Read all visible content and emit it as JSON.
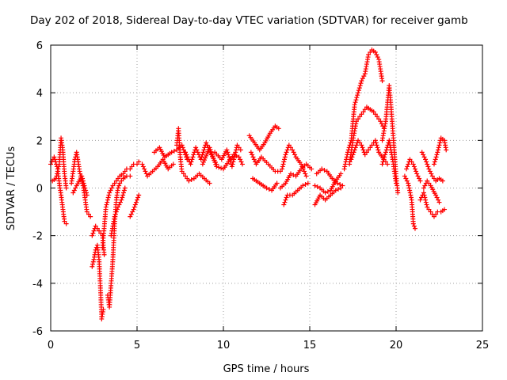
{
  "chart_data": {
    "type": "scatter",
    "title": "Day 202 of 2018, Sidereal Day-to-day VTEC variation (SDTVAR) for receiver gamb",
    "xlabel": "GPS time / hours",
    "ylabel": "SDTVAR / TECUs",
    "xlim": [
      0,
      25
    ],
    "ylim": [
      -6,
      6
    ],
    "xticks": [
      0,
      5,
      10,
      15,
      20,
      25
    ],
    "yticks": [
      -6,
      -4,
      -2,
      0,
      2,
      4,
      6
    ],
    "xtick_labels": [
      "0",
      "5",
      "10",
      "15",
      "20",
      "25"
    ],
    "ytick_labels": [
      "-6",
      "-4",
      "-2",
      "0",
      "2",
      "4",
      "6"
    ],
    "grid": true,
    "marker": "+",
    "series": [
      {
        "name": "SDTVAR",
        "color": "#ff0000",
        "tracks": [
          [
            [
              0.0,
              1.0
            ],
            [
              0.2,
              1.3
            ],
            [
              0.4,
              0.8
            ],
            [
              0.5,
              0.2
            ],
            [
              0.6,
              -0.3
            ],
            [
              0.8,
              -1.4
            ],
            [
              0.9,
              -1.5
            ]
          ],
          [
            [
              0.1,
              0.3
            ],
            [
              0.3,
              0.4
            ],
            [
              0.5,
              1.0
            ],
            [
              0.6,
              2.1
            ],
            [
              0.7,
              1.6
            ],
            [
              0.8,
              0.6
            ],
            [
              0.9,
              0.0
            ]
          ],
          [
            [
              1.2,
              0.2
            ],
            [
              1.4,
              1.2
            ],
            [
              1.5,
              1.5
            ],
            [
              1.7,
              0.6
            ],
            [
              1.9,
              0.0
            ],
            [
              2.0,
              -0.5
            ],
            [
              2.1,
              -1.0
            ],
            [
              2.3,
              -1.2
            ]
          ],
          [
            [
              1.3,
              -0.2
            ],
            [
              1.5,
              0.1
            ],
            [
              1.8,
              0.5
            ],
            [
              2.1,
              -0.3
            ]
          ],
          [
            [
              2.4,
              -3.3
            ],
            [
              2.5,
              -3.0
            ],
            [
              2.6,
              -2.6
            ],
            [
              2.7,
              -2.4
            ],
            [
              2.8,
              -3.0
            ],
            [
              2.9,
              -4.5
            ],
            [
              2.95,
              -5.5
            ],
            [
              3.05,
              -5.1
            ]
          ],
          [
            [
              2.4,
              -2.0
            ],
            [
              2.6,
              -1.6
            ],
            [
              2.8,
              -1.8
            ],
            [
              3.0,
              -2.0
            ],
            [
              3.1,
              -2.8
            ]
          ],
          [
            [
              3.0,
              -2.5
            ],
            [
              3.2,
              -0.8
            ],
            [
              3.4,
              -0.2
            ],
            [
              3.6,
              0.1
            ],
            [
              3.8,
              0.3
            ],
            [
              4.0,
              0.5
            ],
            [
              4.2,
              0.6
            ],
            [
              4.4,
              0.8
            ],
            [
              4.6,
              0.8
            ],
            [
              4.8,
              1.0
            ],
            [
              5.0,
              1.0
            ],
            [
              5.1,
              1.1
            ]
          ],
          [
            [
              3.3,
              -4.5
            ],
            [
              3.4,
              -5.0
            ],
            [
              3.5,
              -4.0
            ],
            [
              3.6,
              -3.0
            ],
            [
              3.7,
              -1.5
            ],
            [
              3.8,
              -0.5
            ],
            [
              3.9,
              0.0
            ],
            [
              4.0,
              0.2
            ],
            [
              4.2,
              0.4
            ],
            [
              4.4,
              0.5
            ],
            [
              4.6,
              0.5
            ]
          ],
          [
            [
              3.5,
              -2.0
            ],
            [
              3.7,
              -1.2
            ],
            [
              3.9,
              -0.8
            ],
            [
              4.1,
              -0.5
            ],
            [
              4.3,
              0.0
            ]
          ],
          [
            [
              4.6,
              -1.2
            ],
            [
              4.8,
              -0.9
            ],
            [
              5.0,
              -0.5
            ],
            [
              5.1,
              -0.3
            ]
          ],
          [
            [
              5.3,
              1.0
            ],
            [
              5.6,
              0.5
            ],
            [
              5.9,
              0.7
            ],
            [
              6.2,
              0.9
            ],
            [
              6.5,
              1.2
            ],
            [
              6.8,
              0.8
            ],
            [
              7.1,
              1.0
            ]
          ],
          [
            [
              6.0,
              1.5
            ],
            [
              6.3,
              1.7
            ],
            [
              6.6,
              1.3
            ],
            [
              7.0,
              1.5
            ],
            [
              7.3,
              1.6
            ],
            [
              7.6,
              1.8
            ],
            [
              7.9,
              1.2
            ]
          ],
          [
            [
              7.3,
              1.8
            ],
            [
              7.4,
              2.5
            ],
            [
              7.5,
              1.3
            ],
            [
              7.6,
              0.7
            ],
            [
              7.8,
              0.5
            ],
            [
              8.0,
              0.3
            ],
            [
              8.3,
              0.4
            ],
            [
              8.6,
              0.6
            ],
            [
              8.9,
              0.4
            ],
            [
              9.2,
              0.2
            ]
          ],
          [
            [
              7.8,
              1.5
            ],
            [
              8.1,
              1.0
            ],
            [
              8.4,
              1.7
            ],
            [
              8.7,
              1.2
            ],
            [
              9.0,
              1.9
            ],
            [
              9.3,
              1.4
            ],
            [
              9.6,
              1.0
            ]
          ],
          [
            [
              8.8,
              1.0
            ],
            [
              9.2,
              1.7
            ],
            [
              9.6,
              0.9
            ],
            [
              10.0,
              0.8
            ],
            [
              10.3,
              1.1
            ],
            [
              10.6,
              1.4
            ],
            [
              10.9,
              1.3
            ],
            [
              11.1,
              1.0
            ]
          ],
          [
            [
              9.5,
              1.5
            ],
            [
              9.9,
              1.2
            ],
            [
              10.2,
              1.6
            ],
            [
              10.5,
              0.9
            ],
            [
              10.8,
              1.8
            ],
            [
              11.0,
              1.6
            ]
          ],
          [
            [
              11.5,
              2.2
            ],
            [
              11.8,
              1.9
            ],
            [
              12.1,
              1.6
            ],
            [
              12.4,
              1.9
            ],
            [
              12.7,
              2.3
            ],
            [
              13.0,
              2.6
            ],
            [
              13.2,
              2.5
            ]
          ],
          [
            [
              11.6,
              1.5
            ],
            [
              11.9,
              1.0
            ],
            [
              12.2,
              1.3
            ],
            [
              12.6,
              1.0
            ],
            [
              13.0,
              0.7
            ],
            [
              13.3,
              0.7
            ]
          ],
          [
            [
              11.7,
              0.4
            ],
            [
              12.1,
              0.2
            ],
            [
              12.5,
              0.0
            ],
            [
              12.8,
              -0.1
            ],
            [
              13.1,
              0.2
            ]
          ],
          [
            [
              13.4,
              0.8
            ],
            [
              13.6,
              1.4
            ],
            [
              13.8,
              1.8
            ],
            [
              14.0,
              1.6
            ],
            [
              14.2,
              1.3
            ],
            [
              14.5,
              1.0
            ],
            [
              14.8,
              0.5
            ]
          ],
          [
            [
              13.5,
              -0.7
            ],
            [
              13.7,
              -0.3
            ],
            [
              14.0,
              -0.3
            ],
            [
              14.3,
              -0.1
            ],
            [
              14.6,
              0.1
            ],
            [
              14.9,
              0.2
            ]
          ],
          [
            [
              13.3,
              0.0
            ],
            [
              13.6,
              0.2
            ],
            [
              13.9,
              0.6
            ],
            [
              14.2,
              0.5
            ],
            [
              14.5,
              0.8
            ],
            [
              14.8,
              1.0
            ],
            [
              15.1,
              0.8
            ]
          ],
          [
            [
              15.3,
              -0.7
            ],
            [
              15.6,
              -0.3
            ],
            [
              15.9,
              -0.5
            ],
            [
              16.2,
              -0.3
            ],
            [
              16.5,
              -0.1
            ],
            [
              16.8,
              0.0
            ]
          ],
          [
            [
              15.4,
              0.6
            ],
            [
              15.7,
              0.8
            ],
            [
              16.0,
              0.7
            ],
            [
              16.3,
              0.4
            ],
            [
              16.6,
              0.2
            ],
            [
              16.9,
              0.1
            ]
          ],
          [
            [
              15.3,
              0.1
            ],
            [
              15.6,
              0.0
            ],
            [
              15.9,
              -0.2
            ],
            [
              16.2,
              -0.1
            ],
            [
              16.5,
              0.3
            ],
            [
              16.8,
              0.6
            ]
          ],
          [
            [
              17.0,
              0.8
            ],
            [
              17.2,
              1.5
            ],
            [
              17.4,
              2.0
            ],
            [
              17.6,
              3.5
            ],
            [
              17.8,
              4.0
            ],
            [
              18.0,
              4.5
            ],
            [
              18.2,
              4.8
            ],
            [
              18.4,
              5.6
            ],
            [
              18.6,
              5.8
            ],
            [
              18.8,
              5.7
            ],
            [
              19.0,
              5.4
            ],
            [
              19.2,
              4.5
            ]
          ],
          [
            [
              17.3,
              1.0
            ],
            [
              17.5,
              2.0
            ],
            [
              17.7,
              2.8
            ],
            [
              17.9,
              3.0
            ],
            [
              18.1,
              3.2
            ],
            [
              18.3,
              3.4
            ],
            [
              18.5,
              3.3
            ],
            [
              18.7,
              3.2
            ],
            [
              18.9,
              3.0
            ],
            [
              19.1,
              2.8
            ],
            [
              19.3,
              2.5
            ]
          ],
          [
            [
              17.4,
              1.2
            ],
            [
              17.6,
              1.6
            ],
            [
              17.8,
              2.0
            ],
            [
              18.0,
              1.8
            ],
            [
              18.2,
              1.4
            ],
            [
              18.4,
              1.6
            ],
            [
              18.6,
              1.8
            ],
            [
              18.8,
              2.0
            ],
            [
              19.0,
              1.5
            ],
            [
              19.3,
              1.2
            ],
            [
              19.5,
              1.0
            ]
          ],
          [
            [
              19.2,
              2.0
            ],
            [
              19.4,
              2.8
            ],
            [
              19.6,
              4.3
            ],
            [
              19.7,
              3.5
            ],
            [
              19.8,
              2.5
            ],
            [
              19.9,
              1.5
            ],
            [
              20.0,
              0.5
            ],
            [
              20.1,
              -0.2
            ]
          ],
          [
            [
              19.2,
              1.0
            ],
            [
              19.4,
              1.5
            ],
            [
              19.6,
              2.0
            ],
            [
              19.8,
              1.2
            ],
            [
              20.0,
              0.2
            ]
          ],
          [
            [
              20.5,
              0.5
            ],
            [
              20.7,
              0.2
            ],
            [
              20.9,
              -0.5
            ],
            [
              21.0,
              -1.5
            ],
            [
              21.1,
              -1.7
            ]
          ],
          [
            [
              20.6,
              0.8
            ],
            [
              20.8,
              1.2
            ],
            [
              21.0,
              1.0
            ],
            [
              21.2,
              0.6
            ],
            [
              21.4,
              0.3
            ]
          ],
          [
            [
              21.5,
              1.5
            ],
            [
              21.7,
              1.2
            ],
            [
              21.9,
              0.8
            ],
            [
              22.1,
              0.5
            ],
            [
              22.3,
              0.3
            ],
            [
              22.5,
              0.4
            ],
            [
              22.7,
              0.3
            ]
          ],
          [
            [
              21.4,
              -0.5
            ],
            [
              21.6,
              -0.2
            ],
            [
              21.8,
              -0.8
            ],
            [
              22.0,
              -1.0
            ],
            [
              22.2,
              -1.2
            ],
            [
              22.4,
              -1.0
            ],
            [
              22.6,
              -1.0
            ],
            [
              22.8,
              -0.9
            ]
          ],
          [
            [
              22.2,
              1.0
            ],
            [
              22.4,
              1.5
            ],
            [
              22.6,
              2.1
            ],
            [
              22.8,
              2.0
            ],
            [
              22.9,
              1.6
            ]
          ],
          [
            [
              21.6,
              0.0
            ],
            [
              21.8,
              0.3
            ],
            [
              22.0,
              0.1
            ],
            [
              22.3,
              -0.3
            ],
            [
              22.5,
              -0.6
            ]
          ]
        ]
      }
    ]
  }
}
